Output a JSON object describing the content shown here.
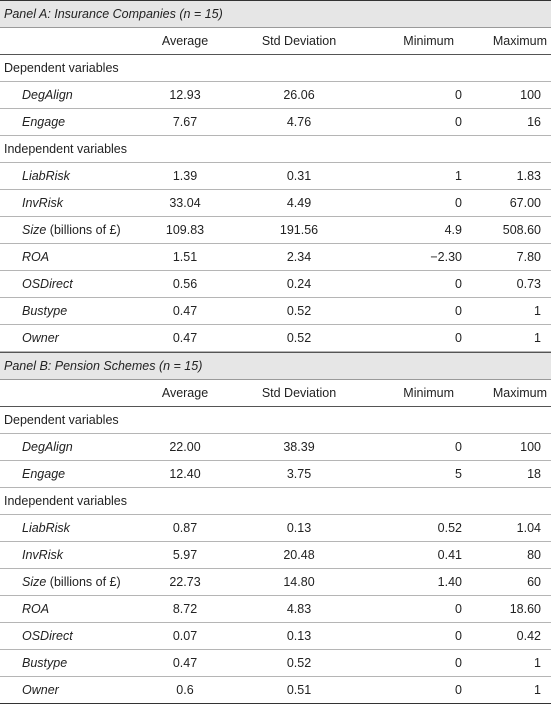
{
  "headers": [
    "Average",
    "Std Deviation",
    "Minimum",
    "Maximum"
  ],
  "panelA": {
    "title": "Panel A: Insurance Companies (n = 15)",
    "sections": [
      {
        "heading": "Dependent variables",
        "rows": [
          {
            "name": "DegAlign",
            "suffix": "",
            "avg": "12.93",
            "sd": "26.06",
            "min": "0",
            "max": "100"
          },
          {
            "name": "Engage",
            "suffix": "",
            "avg": "7.67",
            "sd": "4.76",
            "min": "0",
            "max": "16"
          }
        ]
      },
      {
        "heading": "Independent variables",
        "rows": [
          {
            "name": "LiabRisk",
            "suffix": "",
            "avg": "1.39",
            "sd": "0.31",
            "min": "1",
            "max": "1.83"
          },
          {
            "name": "InvRisk",
            "suffix": "",
            "avg": "33.04",
            "sd": "4.49",
            "min": "0",
            "max": "67.00"
          },
          {
            "name": "Size",
            "suffix": " (billions of £)",
            "avg": "109.83",
            "sd": "191.56",
            "min": "4.9",
            "max": "508.60"
          },
          {
            "name": "ROA",
            "suffix": "",
            "avg": "1.51",
            "sd": "2.34",
            "min": "−2.30",
            "max": "7.80"
          },
          {
            "name": "OSDirect",
            "suffix": "",
            "avg": "0.56",
            "sd": "0.24",
            "min": "0",
            "max": "0.73"
          },
          {
            "name": "Bustype",
            "suffix": "",
            "avg": "0.47",
            "sd": "0.52",
            "min": "0",
            "max": "1"
          },
          {
            "name": "Owner",
            "suffix": "",
            "avg": "0.47",
            "sd": "0.52",
            "min": "0",
            "max": "1"
          }
        ]
      }
    ]
  },
  "panelB": {
    "title": "Panel B: Pension Schemes (n = 15)",
    "sections": [
      {
        "heading": "Dependent variables",
        "rows": [
          {
            "name": "DegAlign",
            "suffix": "",
            "avg": "22.00",
            "sd": "38.39",
            "min": "0",
            "max": "100"
          },
          {
            "name": "Engage",
            "suffix": "",
            "avg": "12.40",
            "sd": "3.75",
            "min": "5",
            "max": "18"
          }
        ]
      },
      {
        "heading": "Independent variables",
        "rows": [
          {
            "name": "LiabRisk",
            "suffix": "",
            "avg": "0.87",
            "sd": "0.13",
            "min": "0.52",
            "max": "1.04"
          },
          {
            "name": "InvRisk",
            "suffix": "",
            "avg": "5.97",
            "sd": "20.48",
            "min": "0.41",
            "max": "80"
          },
          {
            "name": "Size",
            "suffix": " (billions of £)",
            "avg": "22.73",
            "sd": "14.80",
            "min": "1.40",
            "max": "60"
          },
          {
            "name": "ROA",
            "suffix": "",
            "avg": "8.72",
            "sd": "4.83",
            "min": "0",
            "max": "18.60"
          },
          {
            "name": "OSDirect",
            "suffix": "",
            "avg": "0.07",
            "sd": "0.13",
            "min": "0",
            "max": "0.42"
          },
          {
            "name": "Bustype",
            "suffix": "",
            "avg": "0.47",
            "sd": "0.52",
            "min": "0",
            "max": "1"
          },
          {
            "name": "Owner",
            "suffix": "",
            "avg": "0.6",
            "sd": "0.51",
            "min": "0",
            "max": "1"
          }
        ]
      }
    ]
  }
}
